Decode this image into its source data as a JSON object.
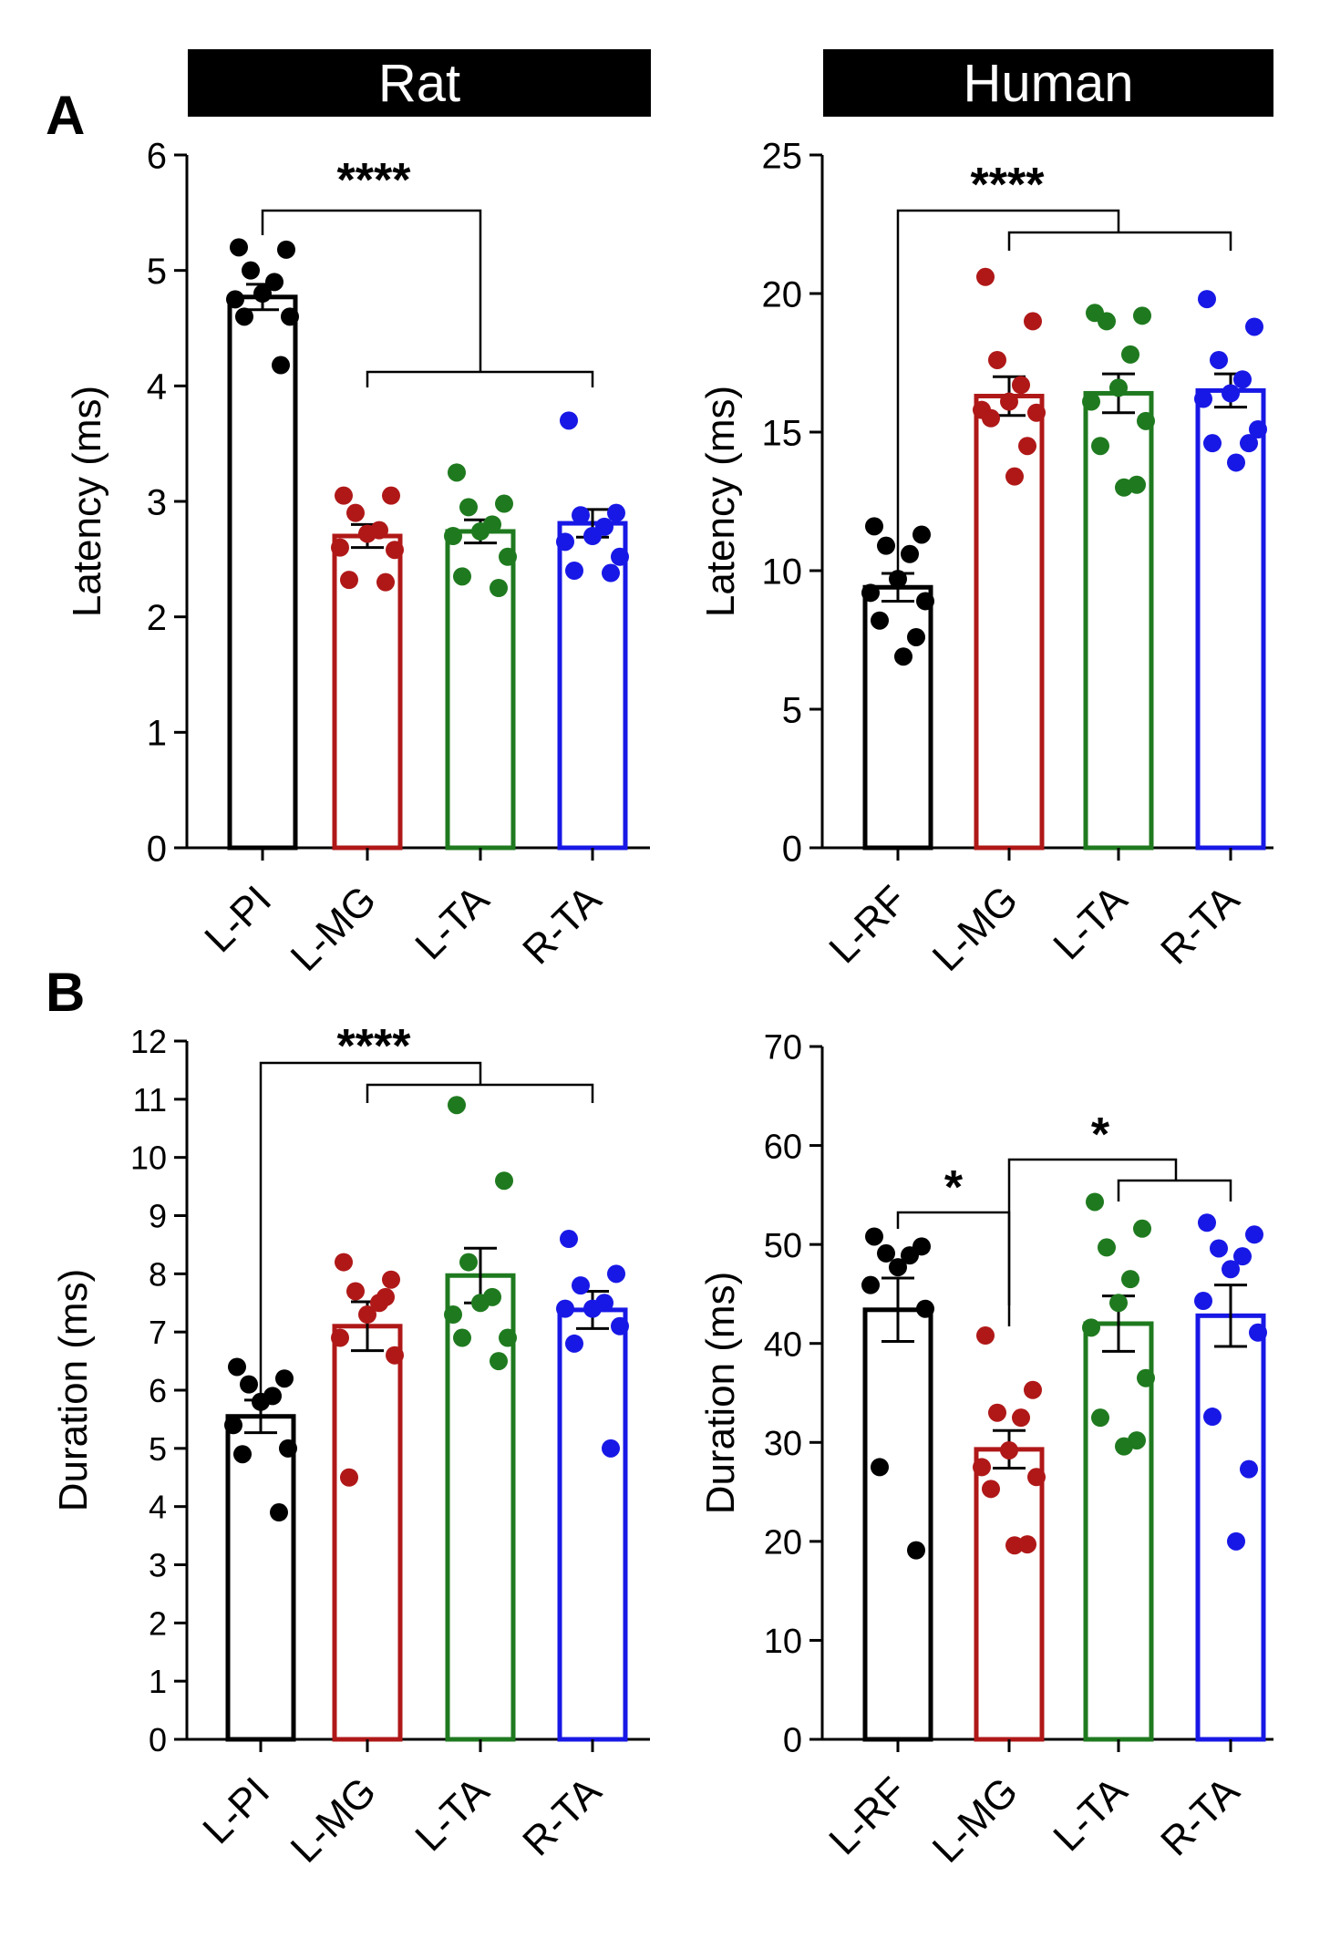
{
  "headers": {
    "left": "Rat",
    "right": "Human"
  },
  "panel_labels": {
    "a": "A",
    "b": "B"
  },
  "colors": {
    "black": "#000000",
    "red": "#b01818",
    "green": "#1f7a1f",
    "blue": "#1818e6"
  },
  "chart_data": [
    {
      "id": "rat-latency",
      "type": "bar",
      "title": "Rat",
      "ylabel": "Latency (ms)",
      "xlabel": "",
      "ylim": [
        0,
        6
      ],
      "yticks": [
        0,
        1,
        2,
        3,
        4,
        5,
        6
      ],
      "categories": [
        "L-PI",
        "L-MG",
        "L-TA",
        "R-TA"
      ],
      "colors": [
        "#000000",
        "#b01818",
        "#1f7a1f",
        "#1818e6"
      ],
      "means": [
        4.77,
        2.7,
        2.74,
        2.81
      ],
      "sem": [
        0.11,
        0.1,
        0.1,
        0.12
      ],
      "points": [
        [
          5.2,
          5.18,
          5.0,
          4.9,
          4.8,
          4.75,
          4.6,
          4.6,
          4.18
        ],
        [
          3.05,
          3.05,
          2.9,
          2.75,
          2.72,
          2.6,
          2.58,
          2.32,
          2.3
        ],
        [
          3.25,
          2.98,
          2.95,
          2.8,
          2.74,
          2.7,
          2.52,
          2.35,
          2.25
        ],
        [
          3.7,
          2.9,
          2.88,
          2.78,
          2.7,
          2.65,
          2.52,
          2.4,
          2.38
        ]
      ],
      "significance": [
        {
          "label": "****",
          "group_from": [
            0
          ],
          "group_to": [
            1,
            2,
            3
          ]
        }
      ]
    },
    {
      "id": "human-latency",
      "type": "bar",
      "title": "Human",
      "ylabel": "Latency (ms)",
      "xlabel": "",
      "ylim": [
        0,
        25
      ],
      "yticks": [
        0,
        5,
        10,
        15,
        20,
        25
      ],
      "categories": [
        "L-RF",
        "L-MG",
        "L-TA",
        "R-TA"
      ],
      "colors": [
        "#000000",
        "#b01818",
        "#1f7a1f",
        "#1818e6"
      ],
      "means": [
        9.4,
        16.3,
        16.4,
        16.5
      ],
      "sem": [
        0.5,
        0.7,
        0.7,
        0.6
      ],
      "points": [
        [
          11.6,
          11.3,
          10.9,
          10.6,
          9.7,
          9.2,
          8.9,
          8.2,
          7.6,
          6.9
        ],
        [
          20.6,
          19.0,
          17.6,
          16.7,
          16.1,
          15.8,
          15.7,
          15.5,
          14.5,
          13.4
        ],
        [
          19.3,
          19.2,
          19.0,
          17.8,
          16.6,
          16.1,
          15.4,
          14.5,
          13.1,
          13.0
        ],
        [
          19.8,
          18.8,
          17.6,
          16.9,
          16.4,
          16.2,
          15.1,
          14.6,
          14.6,
          13.9
        ]
      ],
      "significance": [
        {
          "label": "****",
          "group_from": [
            0
          ],
          "group_to": [
            1,
            2,
            3
          ]
        }
      ]
    },
    {
      "id": "rat-duration",
      "type": "bar",
      "title": "",
      "ylabel": "Duration (ms)",
      "xlabel": "",
      "ylim": [
        0,
        12
      ],
      "yticks": [
        0,
        1,
        2,
        3,
        4,
        5,
        6,
        7,
        8,
        9,
        10,
        11,
        12
      ],
      "categories": [
        "L-PI",
        "L-MG",
        "L-TA",
        "R-TA"
      ],
      "colors": [
        "#000000",
        "#b01818",
        "#1f7a1f",
        "#1818e6"
      ],
      "means": [
        5.55,
        7.1,
        7.97,
        7.38
      ],
      "sem": [
        0.28,
        0.42,
        0.47,
        0.32
      ],
      "points": [
        [
          6.4,
          6.2,
          6.1,
          5.9,
          5.8,
          5.4,
          5.0,
          4.9,
          3.9
        ],
        [
          8.2,
          7.9,
          7.7,
          7.5,
          7.3,
          6.9,
          6.6,
          4.5,
          7.6
        ],
        [
          10.9,
          9.6,
          8.2,
          7.6,
          7.5,
          7.3,
          6.9,
          6.9,
          6.5
        ],
        [
          8.6,
          8.0,
          7.8,
          7.5,
          7.4,
          7.4,
          7.1,
          6.8,
          5.0
        ]
      ],
      "significance": [
        {
          "label": "****",
          "group_from": [
            0
          ],
          "group_to": [
            1,
            2,
            3
          ]
        }
      ]
    },
    {
      "id": "human-duration",
      "type": "bar",
      "title": "",
      "ylabel": "Duration (ms)",
      "xlabel": "",
      "ylim": [
        0,
        70
      ],
      "yticks": [
        0,
        10,
        20,
        30,
        40,
        50,
        60,
        70
      ],
      "categories": [
        "L-RF",
        "L-MG",
        "L-TA",
        "R-TA"
      ],
      "colors": [
        "#000000",
        "#b01818",
        "#1f7a1f",
        "#1818e6"
      ],
      "means": [
        43.4,
        29.3,
        42.0,
        42.8
      ],
      "sem": [
        3.2,
        1.9,
        2.8,
        3.1
      ],
      "points": [
        [
          50.8,
          49.8,
          49.1,
          48.9,
          47.7,
          45.9,
          43.5,
          27.5,
          19.1
        ],
        [
          40.8,
          35.3,
          33.0,
          32.5,
          29.2,
          27.5,
          26.5,
          25.3,
          19.7,
          19.6
        ],
        [
          54.3,
          51.6,
          49.7,
          46.5,
          44.1,
          41.6,
          36.5,
          32.5,
          30.2,
          29.6
        ],
        [
          52.2,
          51.0,
          49.6,
          48.8,
          47.5,
          44.3,
          41.1,
          32.6,
          27.3,
          20.0
        ]
      ],
      "significance": [
        {
          "label": "*",
          "group_from": [
            0
          ],
          "group_to": [
            1
          ]
        },
        {
          "label": "*",
          "group_from": [
            1
          ],
          "group_to": [
            2,
            3
          ]
        }
      ]
    }
  ]
}
